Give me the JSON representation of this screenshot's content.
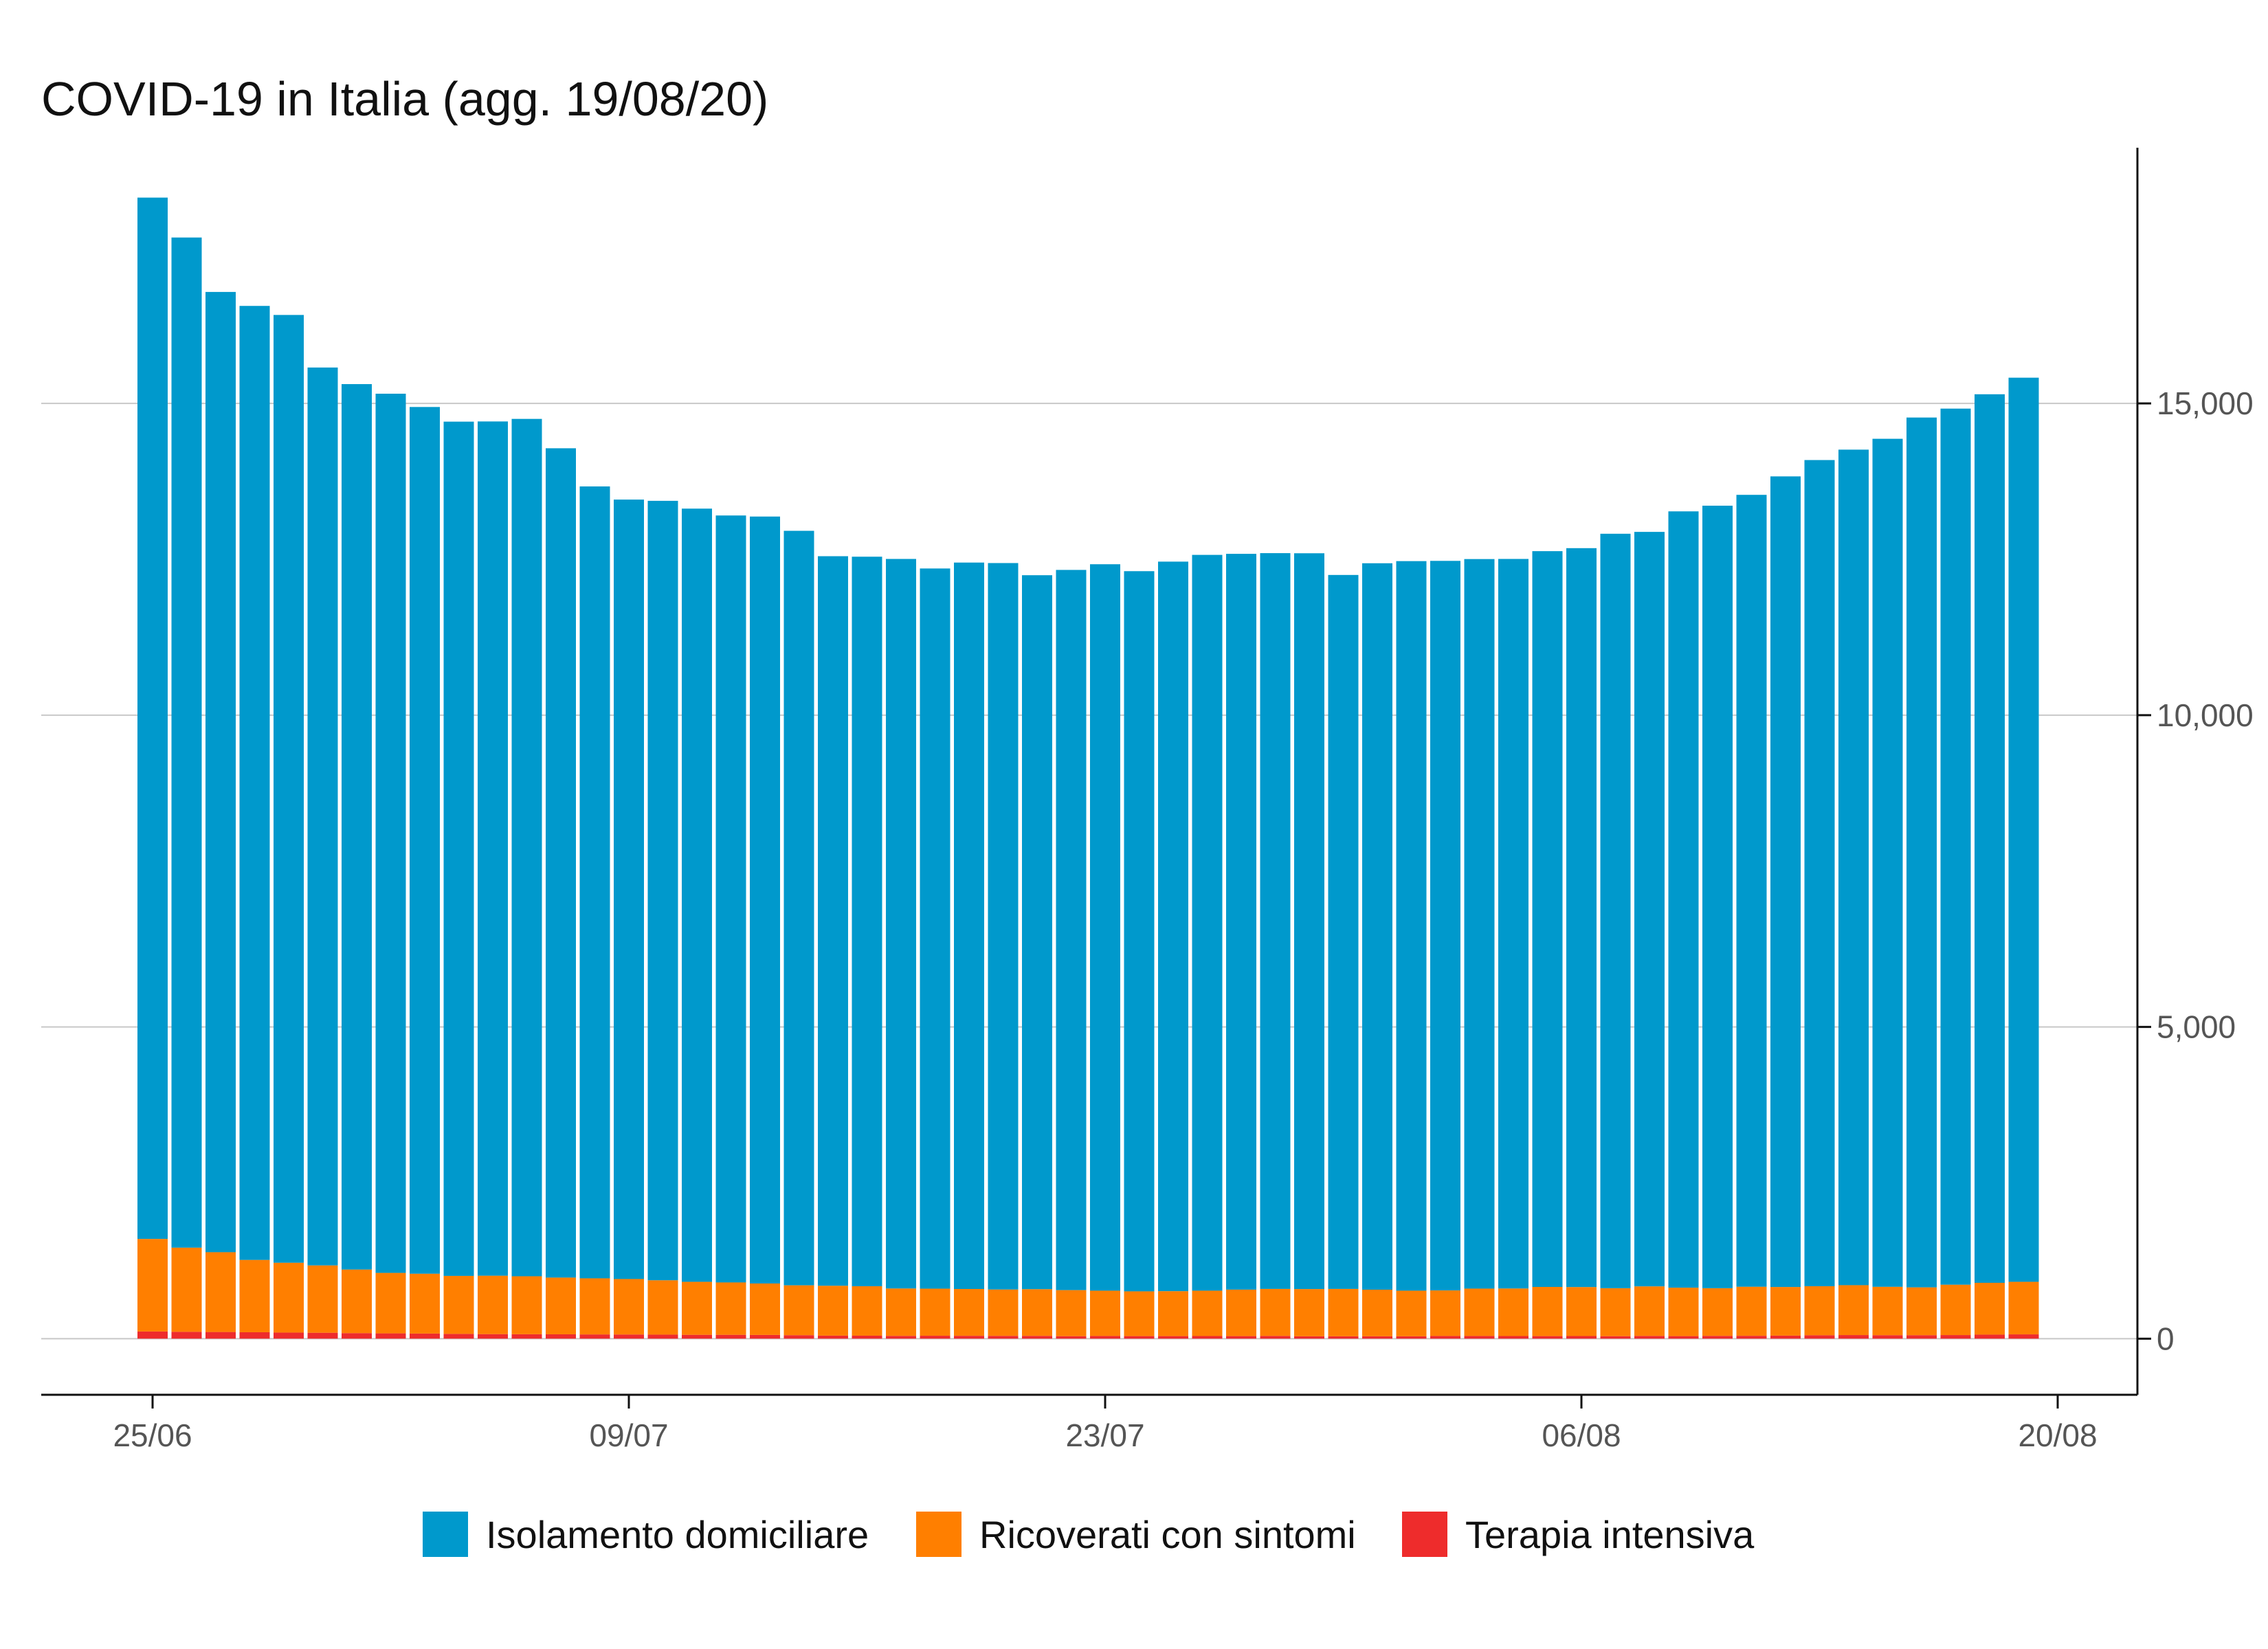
{
  "chart_data": {
    "type": "bar",
    "stacked": true,
    "title": "COVID-19 in Italia (agg. 19/08/20)",
    "xlabel": "",
    "ylabel": "",
    "ylim": [
      -900,
      19100
    ],
    "y_axis_position": "right",
    "grid": "horizontal",
    "legend_position": "bottom",
    "x": [
      "25/06",
      "26/06",
      "27/06",
      "28/06",
      "29/06",
      "30/06",
      "01/07",
      "02/07",
      "03/07",
      "04/07",
      "05/07",
      "06/07",
      "07/07",
      "08/07",
      "09/07",
      "10/07",
      "11/07",
      "12/07",
      "13/07",
      "14/07",
      "15/07",
      "16/07",
      "17/07",
      "18/07",
      "19/07",
      "20/07",
      "21/07",
      "22/07",
      "23/07",
      "24/07",
      "25/07",
      "26/07",
      "27/07",
      "28/07",
      "29/07",
      "30/07",
      "31/07",
      "01/08",
      "02/08",
      "03/08",
      "04/08",
      "05/08",
      "06/08",
      "07/08",
      "08/08",
      "09/08",
      "10/08",
      "11/08",
      "12/08",
      "13/08",
      "14/08",
      "15/08",
      "16/08",
      "17/08",
      "18/08",
      "19/08"
    ],
    "x_ticks": [
      "25/06",
      "09/07",
      "23/07",
      "06/08",
      "20/08"
    ],
    "y_ticks": [
      0,
      5000,
      10000,
      15000
    ],
    "y_tick_labels": [
      "0",
      "5,000",
      "10,000",
      "15,000"
    ],
    "series": [
      {
        "name": "Terapia intensiva",
        "color": "#EE2C2C",
        "values": [
          115,
          110,
          107,
          103,
          98,
          95,
          89,
          85,
          82,
          77,
          73,
          71,
          70,
          68,
          67,
          65,
          62,
          62,
          60,
          56,
          49,
          48,
          45,
          47,
          46,
          45,
          45,
          40,
          43,
          41,
          41,
          42,
          41,
          44,
          38,
          38,
          38,
          38,
          43,
          43,
          42,
          41,
          42,
          40,
          44,
          41,
          45,
          46,
          49,
          55,
          58,
          56,
          56,
          58,
          65,
          69
        ]
      },
      {
        "name": "Ricoverati con sintomi",
        "color": "#FF7F00",
        "values": [
          1485,
          1350,
          1280,
          1160,
          1120,
          1080,
          1020,
          970,
          960,
          930,
          937,
          930,
          910,
          900,
          890,
          872,
          850,
          840,
          825,
          800,
          800,
          793,
          760,
          755,
          751,
          744,
          749,
          739,
          727,
          718,
          721,
          728,
          746,
          754,
          758,
          760,
          748,
          732,
          731,
          760,
          763,
          789,
          786,
          769,
          795,
          777,
          764,
          787,
          780,
          786,
          800,
          776,
          767,
          808,
          831,
          843
        ]
      },
      {
        "name": "Isolamento domiciliare",
        "color": "#0099CC",
        "values": [
          16700,
          16200,
          15400,
          15300,
          15200,
          14400,
          14200,
          14100,
          13900,
          13700,
          13700,
          13750,
          13300,
          12700,
          12500,
          12500,
          12400,
          12300,
          12300,
          12100,
          11700,
          11700,
          11700,
          11550,
          11650,
          11650,
          11450,
          11550,
          11650,
          11550,
          11700,
          11800,
          11800,
          11800,
          11800,
          11450,
          11650,
          11700,
          11700,
          11700,
          11700,
          11800,
          11850,
          12100,
          12100,
          12450,
          12550,
          12700,
          13000,
          13250,
          13400,
          13600,
          13950,
          14050,
          14250,
          14500
        ]
      }
    ]
  }
}
